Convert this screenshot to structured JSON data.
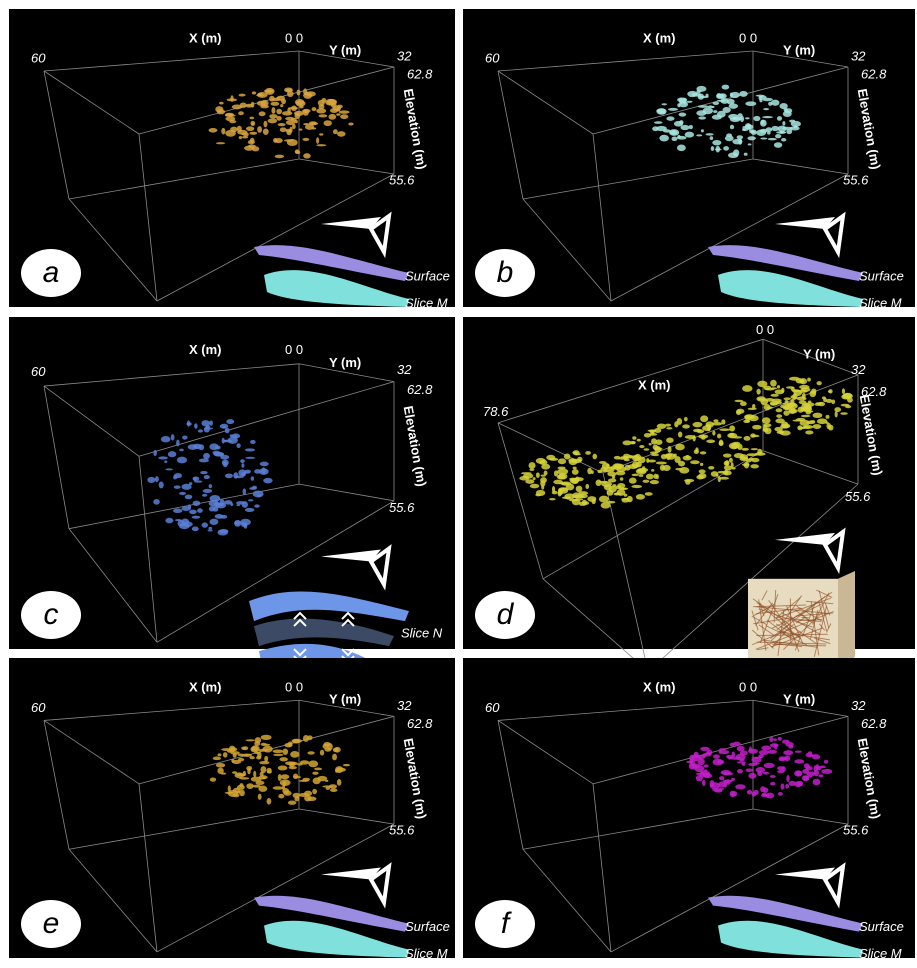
{
  "panels": [
    {
      "label": "a",
      "blob_color": "#d8a53e",
      "axes": {
        "x_label": "X (m)",
        "y_label": "Y (m)",
        "z_label": "Elevation (m)",
        "x_end": "60",
        "origin": "0 0",
        "y_end": "32",
        "z_top": "62.8",
        "z_bottom": "55.6"
      },
      "legend": [
        "Surface",
        "Slice M"
      ]
    },
    {
      "label": "b",
      "blob_color": "#a8e6e2",
      "axes": {
        "x_label": "X (m)",
        "y_label": "Y (m)",
        "z_label": "Elevation (m)",
        "x_end": "60",
        "origin": "0 0",
        "y_end": "32",
        "z_top": "62.8",
        "z_bottom": "55.6"
      },
      "legend": [
        "Surface",
        "Slice M"
      ]
    },
    {
      "label": "c",
      "blob_color": "#5b7fd6",
      "axes": {
        "x_label": "X (m)",
        "y_label": "Y (m)",
        "z_label": "Elevation (m)",
        "x_end": "60",
        "origin": "0 0",
        "y_end": "32",
        "z_top": "62.8",
        "z_bottom": "55.6"
      },
      "legend": [
        "Slice N"
      ]
    },
    {
      "label": "d",
      "blob_color": "#d6d23a",
      "axes": {
        "x_label": "X (m)",
        "y_label": "Y (m)",
        "z_label": "Elevation (m)",
        "x_end": "78.6",
        "origin": "0 0",
        "y_end": "32",
        "z_top": "62.8",
        "z_bottom": "55.6"
      }
    },
    {
      "label": "e",
      "blob_color": "#d4a632",
      "axes": {
        "x_label": "X (m)",
        "y_label": "Y (m)",
        "z_label": "Elevation (m)",
        "x_end": "60",
        "origin": "0 0",
        "y_end": "32",
        "z_top": "62.8",
        "z_bottom": "55.6"
      },
      "legend": [
        "Surface",
        "Slice M"
      ]
    },
    {
      "label": "f",
      "blob_color": "#c21fc8",
      "axes": {
        "x_label": "X (m)",
        "y_label": "Y (m)",
        "z_label": "Elevation (m)",
        "x_end": "60",
        "origin": "0 0",
        "y_end": "32",
        "z_top": "62.8",
        "z_bottom": "55.6"
      },
      "legend": [
        "Surface",
        "Slice M"
      ]
    }
  ]
}
